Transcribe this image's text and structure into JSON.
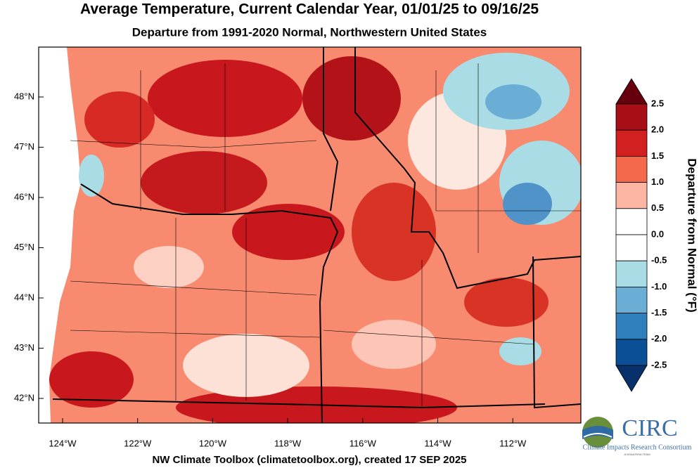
{
  "title": "Average Temperature, Current Calendar Year, 01/01/25 to 09/16/25",
  "subtitle": "Departure from 1991-2020 Normal, Northwestern United States",
  "map": {
    "lat_labels": [
      "48°N",
      "47°N",
      "46°N",
      "45°N",
      "44°N",
      "43°N",
      "42°N"
    ],
    "lon_labels": [
      "124°W",
      "122°W",
      "120°W",
      "118°W",
      "116°W",
      "114°W",
      "112°W"
    ]
  },
  "colorbar": {
    "title": "Departure from Normal (°F)",
    "labels": [
      "2.5",
      "2.0",
      "1.5",
      "1.0",
      "0.5",
      "0.0",
      "-0.5",
      "-1.0",
      "-1.5",
      "-2.0",
      "-2.5"
    ],
    "colors": [
      "#67000d",
      "#a50f15",
      "#d21f1f",
      "#f4694a",
      "#fcb5a3",
      "#ffffff",
      "#ffffff",
      "#a9dce5",
      "#6aaed6",
      "#2f7fbc",
      "#0b4f96",
      "#08306b"
    ]
  },
  "footer": "NW Climate Toolbox (climatetoolbox.org), created 17 SEP 2025",
  "logo": {
    "name": "CIRC",
    "full_name": "Climate Impacts Research Consortium",
    "tagline": "A NOAA RISA TEAM"
  }
}
